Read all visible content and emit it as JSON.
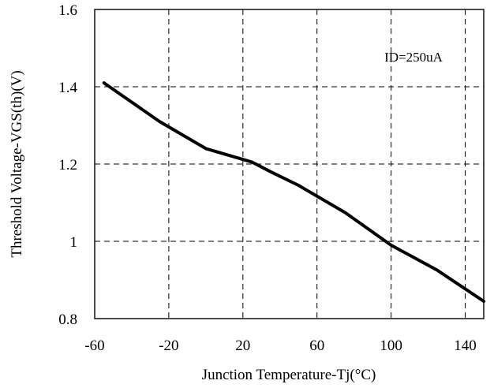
{
  "chart_data": {
    "type": "line",
    "title": "",
    "xlabel": "Junction Temperature-Tj(°C)",
    "ylabel": "Threshold Voltage-VGS(th)(V)",
    "xlim": [
      -60,
      150
    ],
    "ylim": [
      0.8,
      1.6
    ],
    "xticks": [
      -60,
      -20,
      20,
      60,
      100,
      140
    ],
    "xtick_labels": [
      "-60",
      "-20",
      "20",
      "60",
      "100",
      "140"
    ],
    "yticks": [
      0.8,
      1.0,
      1.2,
      1.4,
      1.6
    ],
    "ytick_labels": [
      "0.8",
      "1",
      "1.2",
      "1.4",
      "1.6"
    ],
    "grid": true,
    "annotation": "ID=250uA",
    "series": [
      {
        "x": [
          -55,
          -40,
          -25,
          0,
          25,
          35,
          50,
          75,
          100,
          125,
          150
        ],
        "y": [
          1.41,
          1.36,
          1.31,
          1.24,
          1.205,
          1.18,
          1.145,
          1.075,
          0.99,
          0.925,
          0.845
        ]
      }
    ]
  }
}
